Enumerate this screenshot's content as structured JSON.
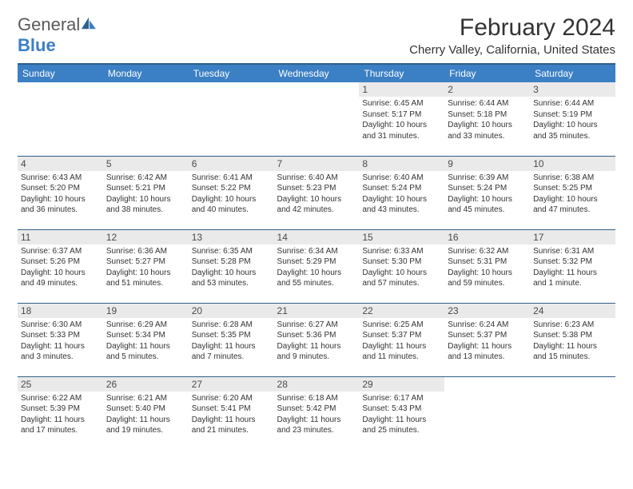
{
  "logo": {
    "text_general": "General",
    "text_blue": "Blue"
  },
  "header": {
    "month_title": "February 2024",
    "location": "Cherry Valley, California, United States"
  },
  "colors": {
    "header_bg": "#3b7fc4",
    "header_border": "#2f5f8a",
    "day_bg": "#eaeaea",
    "text": "#333333"
  },
  "day_headers": [
    "Sunday",
    "Monday",
    "Tuesday",
    "Wednesday",
    "Thursday",
    "Friday",
    "Saturday"
  ],
  "weeks": [
    [
      null,
      null,
      null,
      null,
      {
        "n": "1",
        "sr": "6:45 AM",
        "ss": "5:17 PM",
        "dl": "10 hours and 31 minutes."
      },
      {
        "n": "2",
        "sr": "6:44 AM",
        "ss": "5:18 PM",
        "dl": "10 hours and 33 minutes."
      },
      {
        "n": "3",
        "sr": "6:44 AM",
        "ss": "5:19 PM",
        "dl": "10 hours and 35 minutes."
      }
    ],
    [
      {
        "n": "4",
        "sr": "6:43 AM",
        "ss": "5:20 PM",
        "dl": "10 hours and 36 minutes."
      },
      {
        "n": "5",
        "sr": "6:42 AM",
        "ss": "5:21 PM",
        "dl": "10 hours and 38 minutes."
      },
      {
        "n": "6",
        "sr": "6:41 AM",
        "ss": "5:22 PM",
        "dl": "10 hours and 40 minutes."
      },
      {
        "n": "7",
        "sr": "6:40 AM",
        "ss": "5:23 PM",
        "dl": "10 hours and 42 minutes."
      },
      {
        "n": "8",
        "sr": "6:40 AM",
        "ss": "5:24 PM",
        "dl": "10 hours and 43 minutes."
      },
      {
        "n": "9",
        "sr": "6:39 AM",
        "ss": "5:24 PM",
        "dl": "10 hours and 45 minutes."
      },
      {
        "n": "10",
        "sr": "6:38 AM",
        "ss": "5:25 PM",
        "dl": "10 hours and 47 minutes."
      }
    ],
    [
      {
        "n": "11",
        "sr": "6:37 AM",
        "ss": "5:26 PM",
        "dl": "10 hours and 49 minutes."
      },
      {
        "n": "12",
        "sr": "6:36 AM",
        "ss": "5:27 PM",
        "dl": "10 hours and 51 minutes."
      },
      {
        "n": "13",
        "sr": "6:35 AM",
        "ss": "5:28 PM",
        "dl": "10 hours and 53 minutes."
      },
      {
        "n": "14",
        "sr": "6:34 AM",
        "ss": "5:29 PM",
        "dl": "10 hours and 55 minutes."
      },
      {
        "n": "15",
        "sr": "6:33 AM",
        "ss": "5:30 PM",
        "dl": "10 hours and 57 minutes."
      },
      {
        "n": "16",
        "sr": "6:32 AM",
        "ss": "5:31 PM",
        "dl": "10 hours and 59 minutes."
      },
      {
        "n": "17",
        "sr": "6:31 AM",
        "ss": "5:32 PM",
        "dl": "11 hours and 1 minute."
      }
    ],
    [
      {
        "n": "18",
        "sr": "6:30 AM",
        "ss": "5:33 PM",
        "dl": "11 hours and 3 minutes."
      },
      {
        "n": "19",
        "sr": "6:29 AM",
        "ss": "5:34 PM",
        "dl": "11 hours and 5 minutes."
      },
      {
        "n": "20",
        "sr": "6:28 AM",
        "ss": "5:35 PM",
        "dl": "11 hours and 7 minutes."
      },
      {
        "n": "21",
        "sr": "6:27 AM",
        "ss": "5:36 PM",
        "dl": "11 hours and 9 minutes."
      },
      {
        "n": "22",
        "sr": "6:25 AM",
        "ss": "5:37 PM",
        "dl": "11 hours and 11 minutes."
      },
      {
        "n": "23",
        "sr": "6:24 AM",
        "ss": "5:37 PM",
        "dl": "11 hours and 13 minutes."
      },
      {
        "n": "24",
        "sr": "6:23 AM",
        "ss": "5:38 PM",
        "dl": "11 hours and 15 minutes."
      }
    ],
    [
      {
        "n": "25",
        "sr": "6:22 AM",
        "ss": "5:39 PM",
        "dl": "11 hours and 17 minutes."
      },
      {
        "n": "26",
        "sr": "6:21 AM",
        "ss": "5:40 PM",
        "dl": "11 hours and 19 minutes."
      },
      {
        "n": "27",
        "sr": "6:20 AM",
        "ss": "5:41 PM",
        "dl": "11 hours and 21 minutes."
      },
      {
        "n": "28",
        "sr": "6:18 AM",
        "ss": "5:42 PM",
        "dl": "11 hours and 23 minutes."
      },
      {
        "n": "29",
        "sr": "6:17 AM",
        "ss": "5:43 PM",
        "dl": "11 hours and 25 minutes."
      },
      null,
      null
    ]
  ],
  "labels": {
    "sunrise": "Sunrise:",
    "sunset": "Sunset:",
    "daylight": "Daylight:"
  }
}
